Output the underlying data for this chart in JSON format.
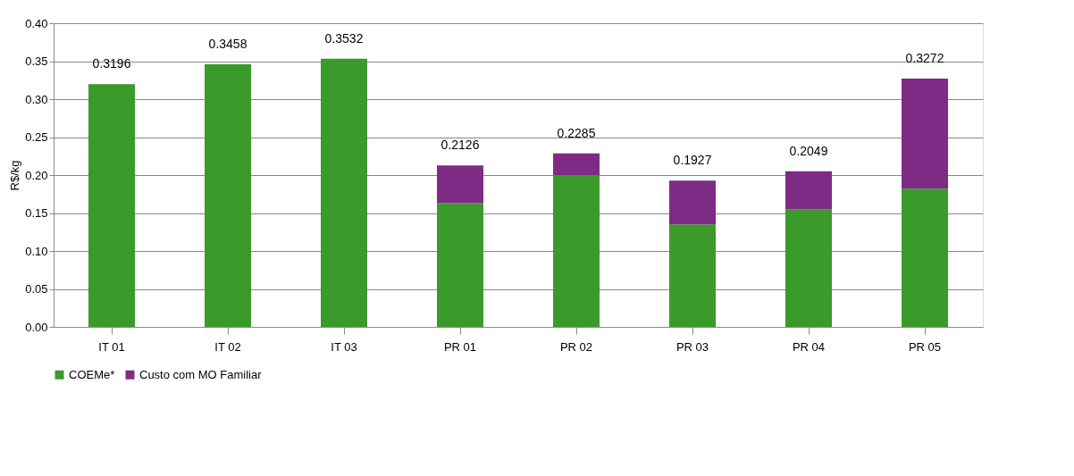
{
  "chart_data": {
    "type": "bar",
    "stacked": true,
    "ylabel": "R$/kg",
    "categories": [
      "IT 01",
      "IT 02",
      "IT 03",
      "PR 01",
      "PR 02",
      "PR 03",
      "PR 04",
      "PR 05"
    ],
    "series": [
      {
        "name": "COEMe*",
        "color": "#3a9a2a",
        "values": [
          0.3196,
          0.3458,
          0.3532,
          0.163,
          0.2,
          0.135,
          0.155,
          0.182
        ]
      },
      {
        "name": "Custo com MO Familiar",
        "color": "#7e2b86",
        "values": [
          null,
          null,
          null,
          0.0496,
          0.0285,
          0.0577,
          0.0499,
          0.1452
        ]
      }
    ],
    "totals": [
      "0.3196",
      "0.3458",
      "0.3532",
      "0.2126",
      "0.2285",
      "0.1927",
      "0.2049",
      "0.3272"
    ],
    "ylim": [
      0,
      0.4
    ],
    "yticks": [
      {
        "value": 0,
        "label": "0.00"
      },
      {
        "value": 0.05,
        "label": "0.05"
      },
      {
        "value": 0.1,
        "label": "0.10"
      },
      {
        "value": 0.15,
        "label": "0.15"
      },
      {
        "value": 0.2,
        "label": "0.20"
      },
      {
        "value": 0.25,
        "label": "0.25"
      },
      {
        "value": 0.3,
        "label": "0.30"
      },
      {
        "value": 0.35,
        "label": "0.35"
      },
      {
        "value": 0.4,
        "label": "0.40"
      }
    ],
    "grid": "y",
    "legend": "bottom"
  }
}
